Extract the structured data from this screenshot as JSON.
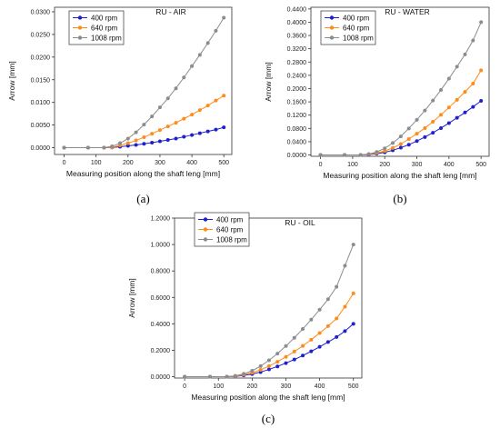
{
  "colors": {
    "400": "#1f1fd0",
    "640": "#ff8c1a",
    "1008": "#8c8c8c"
  },
  "chart_data": [
    {
      "type": "line",
      "panel_label": "(a)",
      "title": "RU - AIR",
      "xlabel": "Measuring position along the shaft leng [mm]",
      "ylabel": "Arrow [mm]",
      "xlim": [
        -30,
        525
      ],
      "ylim": [
        -0.0015,
        0.031
      ],
      "xticks": [
        0,
        100,
        200,
        300,
        400,
        500
      ],
      "xtick_labels": [
        "0",
        "100",
        "200",
        "300",
        "400",
        "500"
      ],
      "yticks": [
        0.0,
        0.005,
        0.01,
        0.015,
        0.02,
        0.025,
        0.03
      ],
      "ytick_labels": [
        "0.0000",
        "0.0050",
        "0.0100",
        "0.0150",
        "0.0200",
        "0.0250",
        "0.0300"
      ],
      "legend_position": "top-left",
      "x": [
        0,
        75,
        125,
        150,
        175,
        200,
        225,
        250,
        275,
        300,
        325,
        350,
        375,
        400,
        425,
        450,
        475,
        500
      ],
      "series": [
        {
          "name": "400 rpm",
          "color_key": "400",
          "values": [
            0,
            0,
            0,
            5e-05,
            0.0002,
            0.0004,
            0.0006,
            0.00085,
            0.0011,
            0.0014,
            0.0017,
            0.002,
            0.0024,
            0.0028,
            0.0032,
            0.0036,
            0.004,
            0.0045
          ]
        },
        {
          "name": "640 rpm",
          "color_key": "640",
          "values": [
            0,
            0,
            0,
            0.0001,
            0.0005,
            0.001,
            0.0016,
            0.0023,
            0.0031,
            0.0039,
            0.0047,
            0.0055,
            0.0064,
            0.0073,
            0.0083,
            0.0093,
            0.0104,
            0.0115
          ]
        },
        {
          "name": "1008 rpm",
          "color_key": "1008",
          "values": [
            0,
            0,
            0,
            0.0003,
            0.001,
            0.002,
            0.0034,
            0.0051,
            0.0069,
            0.0089,
            0.0109,
            0.0131,
            0.0155,
            0.018,
            0.0205,
            0.0231,
            0.0258,
            0.0287
          ]
        }
      ]
    },
    {
      "type": "line",
      "panel_label": "(b)",
      "title": "RU - WATER",
      "xlabel": "Measuring position along the shaft leng [mm]",
      "ylabel": "Arrow [mm]",
      "xlim": [
        -30,
        525
      ],
      "ylim": [
        -0.004,
        0.445
      ],
      "xticks": [
        0,
        100,
        200,
        300,
        400,
        500
      ],
      "xtick_labels": [
        "0",
        "100",
        "200",
        "300",
        "400",
        "500"
      ],
      "yticks": [
        0,
        0.04,
        0.08,
        0.12,
        0.16,
        0.2,
        0.24,
        0.28,
        0.32,
        0.36,
        0.4,
        0.44
      ],
      "ytick_labels": [
        "0.0000",
        "0.0400",
        "0.0800",
        "0.1200",
        "0.1600",
        "0.2000",
        "0.2400",
        "0.2800",
        "0.3200",
        "0.3600",
        "0.4000",
        "0.4400"
      ],
      "legend_position": "top-left",
      "x": [
        0,
        75,
        125,
        150,
        175,
        200,
        225,
        250,
        275,
        300,
        325,
        350,
        375,
        400,
        425,
        450,
        475,
        500
      ],
      "series": [
        {
          "name": "400 rpm",
          "color_key": "400",
          "values": [
            0,
            0,
            0,
            0.001,
            0.004,
            0.008,
            0.014,
            0.022,
            0.031,
            0.042,
            0.054,
            0.067,
            0.081,
            0.096,
            0.112,
            0.128,
            0.145,
            0.163
          ]
        },
        {
          "name": "640 rpm",
          "color_key": "640",
          "values": [
            0,
            0,
            0,
            0.002,
            0.006,
            0.012,
            0.021,
            0.033,
            0.048,
            0.064,
            0.081,
            0.1,
            0.121,
            0.143,
            0.166,
            0.19,
            0.215,
            0.255
          ]
        },
        {
          "name": "1008 rpm",
          "color_key": "1008",
          "values": [
            0,
            0,
            0,
            0.003,
            0.009,
            0.02,
            0.036,
            0.056,
            0.08,
            0.106,
            0.134,
            0.164,
            0.196,
            0.23,
            0.266,
            0.303,
            0.345,
            0.4
          ]
        }
      ]
    },
    {
      "type": "line",
      "panel_label": "(c)",
      "title": "RU - OIL",
      "xlabel": "Measuring position along the shaft leng [mm]",
      "ylabel": "Arrow [mm]",
      "xlim": [
        -30,
        525
      ],
      "ylim": [
        -0.01,
        1.2
      ],
      "xticks": [
        0,
        100,
        200,
        300,
        400,
        500
      ],
      "xtick_labels": [
        "0",
        "100",
        "200",
        "300",
        "400",
        "500"
      ],
      "yticks": [
        0,
        0.2,
        0.4,
        0.6,
        0.8,
        1.0,
        1.2
      ],
      "ytick_labels": [
        "0.0000",
        "0.2000",
        "0.4000",
        "0.6000",
        "0.8000",
        "1.0000",
        "1.2000"
      ],
      "legend_position": "top-left",
      "x": [
        0,
        75,
        125,
        150,
        175,
        200,
        225,
        250,
        275,
        300,
        325,
        350,
        375,
        400,
        425,
        450,
        475,
        500
      ],
      "series": [
        {
          "name": "400 rpm",
          "color_key": "400",
          "values": [
            0,
            0,
            0,
            0.002,
            0.01,
            0.02,
            0.035,
            0.055,
            0.078,
            0.103,
            0.13,
            0.16,
            0.192,
            0.226,
            0.262,
            0.3,
            0.345,
            0.4
          ]
        },
        {
          "name": "640 rpm",
          "color_key": "640",
          "values": [
            0,
            0,
            0,
            0.004,
            0.015,
            0.03,
            0.052,
            0.08,
            0.113,
            0.15,
            0.19,
            0.233,
            0.28,
            0.33,
            0.383,
            0.44,
            0.53,
            0.63
          ]
        },
        {
          "name": "1008 rpm",
          "color_key": "1008",
          "values": [
            0,
            0,
            0,
            0.006,
            0.022,
            0.045,
            0.08,
            0.124,
            0.175,
            0.232,
            0.294,
            0.361,
            0.432,
            0.507,
            0.586,
            0.68,
            0.84,
            1.0
          ]
        }
      ]
    }
  ]
}
